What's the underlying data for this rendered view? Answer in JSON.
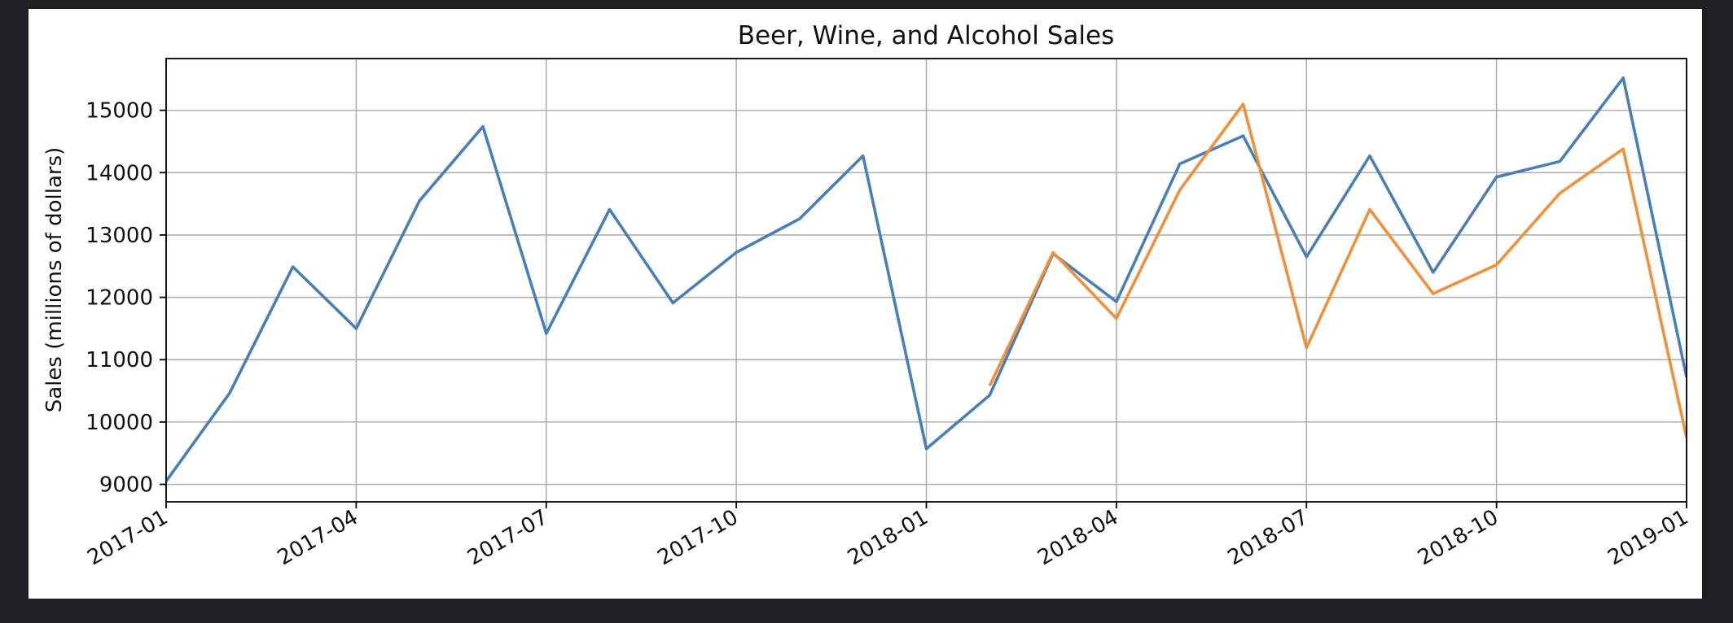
{
  "chart_data": {
    "type": "line",
    "title": "Beer, Wine, and Alcohol Sales",
    "xlabel": "",
    "ylabel": "Sales (millions of dollars)",
    "x_type": "date",
    "xlim": [
      "2017-01",
      "2019-01"
    ],
    "ylim": [
      8720,
      15830
    ],
    "x_ticks": [
      "2017-01",
      "2017-04",
      "2017-07",
      "2017-10",
      "2018-01",
      "2018-04",
      "2018-07",
      "2018-10",
      "2019-01"
    ],
    "y_ticks": [
      9000,
      10000,
      11000,
      12000,
      13000,
      14000,
      15000
    ],
    "grid": true,
    "legend": false,
    "series": [
      {
        "color": "#4a7fb5",
        "x": [
          "2017-01",
          "2017-02",
          "2017-03",
          "2017-04",
          "2017-05",
          "2017-06",
          "2017-07",
          "2017-08",
          "2017-09",
          "2017-10",
          "2017-11",
          "2017-12",
          "2018-01",
          "2018-02",
          "2018-03",
          "2018-04",
          "2018-05",
          "2018-06",
          "2018-07",
          "2018-08",
          "2018-09",
          "2018-10",
          "2018-11",
          "2018-12",
          "2019-01"
        ],
        "values": [
          9050,
          10460,
          12490,
          11500,
          13550,
          14740,
          11420,
          13410,
          11910,
          12720,
          13260,
          14270,
          9570,
          10430,
          12700,
          11930,
          14140,
          14590,
          12650,
          14270,
          12400,
          13930,
          14180,
          15520,
          10720
        ]
      },
      {
        "color": "#f0903c",
        "x": [
          "2018-02",
          "2018-03",
          "2018-04",
          "2018-05",
          "2018-06",
          "2018-07",
          "2018-08",
          "2018-09",
          "2018-10",
          "2018-11",
          "2018-12",
          "2019-01"
        ],
        "values": [
          10580,
          12720,
          11660,
          13720,
          15100,
          11190,
          13410,
          12060,
          12520,
          13670,
          14380,
          9750
        ]
      }
    ]
  }
}
